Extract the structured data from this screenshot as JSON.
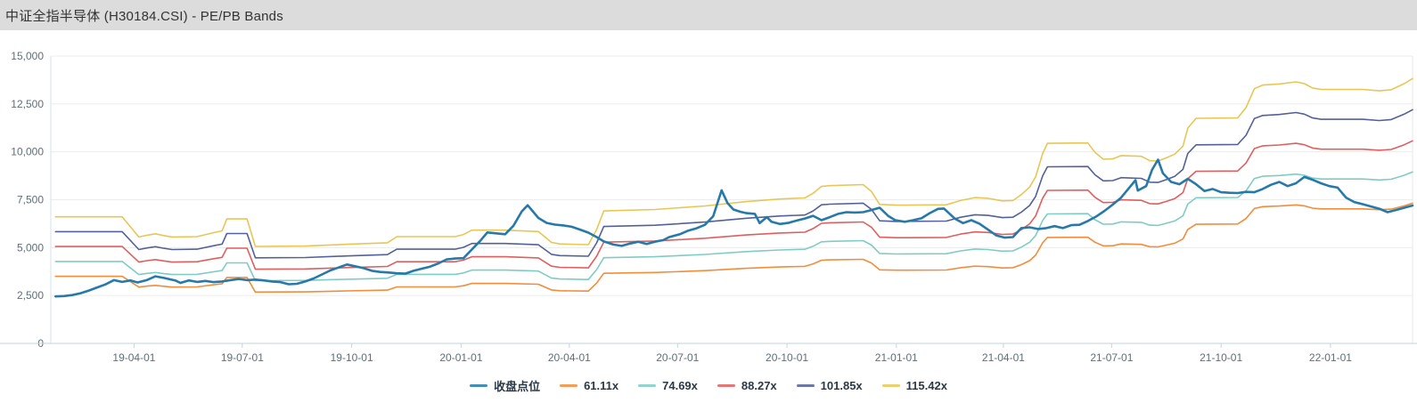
{
  "header": {
    "title": "中证全指半导体 (H30184.CSI) - PE/PB Bands"
  },
  "chart_data": {
    "type": "line",
    "title": "中证全指半导体 (H30184.CSI) - PE/PB Bands",
    "x_range": [
      "2019-01-21",
      "2022-03-11"
    ],
    "x_axis": {
      "tick_labels": [
        "19-04-01",
        "19-07-01",
        "19-10-01",
        "20-01-01",
        "20-04-01",
        "20-07-01",
        "20-10-01",
        "21-01-01",
        "21-04-01",
        "21-07-01",
        "21-10-01",
        "22-01-01"
      ]
    },
    "y_axis": {
      "min": 0,
      "max": 15000,
      "interval": 2500,
      "tick_labels": [
        "0",
        "2,500",
        "5,000",
        "7,500",
        "10,000",
        "12,500",
        "15,000"
      ]
    },
    "style": {
      "grid_line": "#ececec",
      "axis_line": "#c3d3e2",
      "left_axis_line": "#d3e2ee",
      "right_border": "#e9e9e9",
      "axis_label": "#5f6e78",
      "background": "#ffffff",
      "header_background": "#dcdcdc"
    },
    "legend": [
      {
        "label": "收盘点位",
        "color": "#2679a8"
      },
      {
        "label": "61.11x",
        "color": "#f18d3b"
      },
      {
        "label": "74.69x",
        "color": "#7fccc4"
      },
      {
        "label": "88.27x",
        "color": "#de5f5f"
      },
      {
        "label": "101.85x",
        "color": "#53609a"
      },
      {
        "label": "115.42x",
        "color": "#e8c655"
      }
    ],
    "series": {
      "close": {
        "name": "收盘点位",
        "color": "#2679a8",
        "line_width": 2.6,
        "points": [
          [
            "2019-01-25",
            2450
          ],
          [
            "2019-02-01",
            2470
          ],
          [
            "2019-02-08",
            2520
          ],
          [
            "2019-02-15",
            2620
          ],
          [
            "2019-02-22",
            2760
          ],
          [
            "2019-03-01",
            2920
          ],
          [
            "2019-03-08",
            3080
          ],
          [
            "2019-03-15",
            3300
          ],
          [
            "2019-03-22",
            3210
          ],
          [
            "2019-03-29",
            3290
          ],
          [
            "2019-04-04",
            3180
          ],
          [
            "2019-04-12",
            3310
          ],
          [
            "2019-04-19",
            3500
          ],
          [
            "2019-04-26",
            3420
          ],
          [
            "2019-05-06",
            3280
          ],
          [
            "2019-05-10",
            3160
          ],
          [
            "2019-05-17",
            3290
          ],
          [
            "2019-05-24",
            3210
          ],
          [
            "2019-05-31",
            3260
          ],
          [
            "2019-06-07",
            3200
          ],
          [
            "2019-06-14",
            3230
          ],
          [
            "2019-06-21",
            3300
          ],
          [
            "2019-06-28",
            3360
          ],
          [
            "2019-07-05",
            3300
          ],
          [
            "2019-07-12",
            3330
          ],
          [
            "2019-07-19",
            3290
          ],
          [
            "2019-07-26",
            3230
          ],
          [
            "2019-08-02",
            3200
          ],
          [
            "2019-08-09",
            3090
          ],
          [
            "2019-08-16",
            3110
          ],
          [
            "2019-08-23",
            3230
          ],
          [
            "2019-08-30",
            3390
          ],
          [
            "2019-09-06",
            3600
          ],
          [
            "2019-09-13",
            3810
          ],
          [
            "2019-09-20",
            3960
          ],
          [
            "2019-09-27",
            4120
          ],
          [
            "2019-10-11",
            3930
          ],
          [
            "2019-10-18",
            3790
          ],
          [
            "2019-10-25",
            3730
          ],
          [
            "2019-11-01",
            3700
          ],
          [
            "2019-11-08",
            3660
          ],
          [
            "2019-11-15",
            3640
          ],
          [
            "2019-11-22",
            3790
          ],
          [
            "2019-11-29",
            3900
          ],
          [
            "2019-12-06",
            4010
          ],
          [
            "2019-12-13",
            4180
          ],
          [
            "2019-12-20",
            4390
          ],
          [
            "2019-12-27",
            4430
          ],
          [
            "2020-01-03",
            4450
          ],
          [
            "2020-01-10",
            4900
          ],
          [
            "2020-01-17",
            5350
          ],
          [
            "2020-01-23",
            5790
          ],
          [
            "2020-02-07",
            5700
          ],
          [
            "2020-02-14",
            6140
          ],
          [
            "2020-02-21",
            6890
          ],
          [
            "2020-02-26",
            7210
          ],
          [
            "2020-03-06",
            6550
          ],
          [
            "2020-03-13",
            6290
          ],
          [
            "2020-03-20",
            6200
          ],
          [
            "2020-03-27",
            6160
          ],
          [
            "2020-04-03",
            6090
          ],
          [
            "2020-04-10",
            5940
          ],
          [
            "2020-04-17",
            5780
          ],
          [
            "2020-04-24",
            5550
          ],
          [
            "2020-04-30",
            5320
          ],
          [
            "2020-05-08",
            5160
          ],
          [
            "2020-05-15",
            5090
          ],
          [
            "2020-05-22",
            5210
          ],
          [
            "2020-05-29",
            5310
          ],
          [
            "2020-06-05",
            5190
          ],
          [
            "2020-06-12",
            5310
          ],
          [
            "2020-06-19",
            5390
          ],
          [
            "2020-06-24",
            5550
          ],
          [
            "2020-07-03",
            5700
          ],
          [
            "2020-07-10",
            5890
          ],
          [
            "2020-07-17",
            6010
          ],
          [
            "2020-07-24",
            6190
          ],
          [
            "2020-07-31",
            6640
          ],
          [
            "2020-08-07",
            7990
          ],
          [
            "2020-08-12",
            7330
          ],
          [
            "2020-08-17",
            6990
          ],
          [
            "2020-08-23",
            6870
          ],
          [
            "2020-08-28",
            6800
          ],
          [
            "2020-09-04",
            6760
          ],
          [
            "2020-09-08",
            6280
          ],
          [
            "2020-09-14",
            6590
          ],
          [
            "2020-09-18",
            6350
          ],
          [
            "2020-09-25",
            6230
          ],
          [
            "2020-10-02",
            6290
          ],
          [
            "2020-10-09",
            6410
          ],
          [
            "2020-10-16",
            6520
          ],
          [
            "2020-10-23",
            6660
          ],
          [
            "2020-10-30",
            6430
          ],
          [
            "2020-11-06",
            6590
          ],
          [
            "2020-11-13",
            6760
          ],
          [
            "2020-11-20",
            6850
          ],
          [
            "2020-11-27",
            6830
          ],
          [
            "2020-12-04",
            6850
          ],
          [
            "2020-12-11",
            6960
          ],
          [
            "2020-12-18",
            7080
          ],
          [
            "2020-12-25",
            6660
          ],
          [
            "2020-12-31",
            6430
          ],
          [
            "2021-01-08",
            6350
          ],
          [
            "2021-01-15",
            6430
          ],
          [
            "2021-01-22",
            6530
          ],
          [
            "2021-01-29",
            6800
          ],
          [
            "2021-02-05",
            7020
          ],
          [
            "2021-02-10",
            7040
          ],
          [
            "2021-02-19",
            6520
          ],
          [
            "2021-02-26",
            6280
          ],
          [
            "2021-03-05",
            6430
          ],
          [
            "2021-03-12",
            6240
          ],
          [
            "2021-03-19",
            5940
          ],
          [
            "2021-03-26",
            5640
          ],
          [
            "2021-04-02",
            5520
          ],
          [
            "2021-04-09",
            5550
          ],
          [
            "2021-04-16",
            6020
          ],
          [
            "2021-04-23",
            6060
          ],
          [
            "2021-04-30",
            5970
          ],
          [
            "2021-05-07",
            6020
          ],
          [
            "2021-05-14",
            6120
          ],
          [
            "2021-05-21",
            6020
          ],
          [
            "2021-05-28",
            6170
          ],
          [
            "2021-06-04",
            6190
          ],
          [
            "2021-06-11",
            6390
          ],
          [
            "2021-06-18",
            6620
          ],
          [
            "2021-06-25",
            6920
          ],
          [
            "2021-07-02",
            7250
          ],
          [
            "2021-07-09",
            7610
          ],
          [
            "2021-07-16",
            8140
          ],
          [
            "2021-07-21",
            8520
          ],
          [
            "2021-07-23",
            7980
          ],
          [
            "2021-07-30",
            8210
          ],
          [
            "2021-08-04",
            9060
          ],
          [
            "2021-08-09",
            9590
          ],
          [
            "2021-08-13",
            8890
          ],
          [
            "2021-08-20",
            8430
          ],
          [
            "2021-08-27",
            8310
          ],
          [
            "2021-09-03",
            8590
          ],
          [
            "2021-09-10",
            8310
          ],
          [
            "2021-09-17",
            7950
          ],
          [
            "2021-09-24",
            8060
          ],
          [
            "2021-10-01",
            7890
          ],
          [
            "2021-10-08",
            7860
          ],
          [
            "2021-10-15",
            7850
          ],
          [
            "2021-10-22",
            7910
          ],
          [
            "2021-10-29",
            7890
          ],
          [
            "2021-11-05",
            8060
          ],
          [
            "2021-11-12",
            8280
          ],
          [
            "2021-11-19",
            8430
          ],
          [
            "2021-11-26",
            8210
          ],
          [
            "2021-12-03",
            8360
          ],
          [
            "2021-12-10",
            8690
          ],
          [
            "2021-12-17",
            8540
          ],
          [
            "2021-12-24",
            8360
          ],
          [
            "2021-12-31",
            8210
          ],
          [
            "2022-01-07",
            8130
          ],
          [
            "2022-01-14",
            7610
          ],
          [
            "2022-01-21",
            7380
          ],
          [
            "2022-01-28",
            7270
          ],
          [
            "2022-02-11",
            7030
          ],
          [
            "2022-02-18",
            6850
          ],
          [
            "2022-02-25",
            6960
          ],
          [
            "2022-03-04",
            7080
          ],
          [
            "2022-03-11",
            7200
          ]
        ]
      },
      "pe_bands": {
        "base_multiple": 61.11,
        "multiples": [
          {
            "label": "61.11x",
            "value": 61.11,
            "color": "#f18d3b"
          },
          {
            "label": "74.69x",
            "value": 74.69,
            "color": "#7fccc4"
          },
          {
            "label": "88.27x",
            "value": 88.27,
            "color": "#de5f5f"
          },
          {
            "label": "101.85x",
            "value": 101.85,
            "color": "#53609a"
          },
          {
            "label": "115.42x",
            "value": 115.42,
            "color": "#e8c655"
          }
        ],
        "line_width": 1.6,
        "base_points": [
          [
            "2019-01-25",
            3500
          ],
          [
            "2019-03-22",
            3500
          ],
          [
            "2019-04-05",
            2940
          ],
          [
            "2019-04-12",
            2990
          ],
          [
            "2019-04-19",
            3030
          ],
          [
            "2019-04-26",
            2980
          ],
          [
            "2019-05-03",
            2940
          ],
          [
            "2019-05-24",
            2950
          ],
          [
            "2019-06-07",
            3060
          ],
          [
            "2019-06-14",
            3110
          ],
          [
            "2019-06-18",
            3440
          ],
          [
            "2019-07-05",
            3440
          ],
          [
            "2019-07-12",
            2680
          ],
          [
            "2019-08-23",
            2690
          ],
          [
            "2019-09-27",
            2740
          ],
          [
            "2019-10-31",
            2780
          ],
          [
            "2019-11-08",
            2950
          ],
          [
            "2019-12-27",
            2950
          ],
          [
            "2020-01-03",
            3010
          ],
          [
            "2020-01-10",
            3130
          ],
          [
            "2020-02-07",
            3130
          ],
          [
            "2020-03-06",
            3090
          ],
          [
            "2020-03-17",
            2790
          ],
          [
            "2020-03-24",
            2750
          ],
          [
            "2020-04-17",
            2730
          ],
          [
            "2020-04-24",
            3150
          ],
          [
            "2020-04-30",
            3660
          ],
          [
            "2020-06-12",
            3700
          ],
          [
            "2020-07-24",
            3800
          ],
          [
            "2020-08-28",
            3920
          ],
          [
            "2020-09-25",
            3990
          ],
          [
            "2020-10-16",
            4020
          ],
          [
            "2020-10-23",
            4150
          ],
          [
            "2020-10-30",
            4340
          ],
          [
            "2020-11-06",
            4360
          ],
          [
            "2020-12-04",
            4390
          ],
          [
            "2020-12-11",
            4200
          ],
          [
            "2020-12-18",
            3840
          ],
          [
            "2021-01-01",
            3820
          ],
          [
            "2021-02-12",
            3830
          ],
          [
            "2021-02-24",
            3950
          ],
          [
            "2021-03-08",
            4030
          ],
          [
            "2021-03-19",
            4010
          ],
          [
            "2021-03-31",
            3940
          ],
          [
            "2021-04-09",
            3950
          ],
          [
            "2021-04-16",
            4110
          ],
          [
            "2021-04-23",
            4320
          ],
          [
            "2021-04-28",
            4600
          ],
          [
            "2021-05-04",
            5250
          ],
          [
            "2021-05-08",
            5530
          ],
          [
            "2021-06-11",
            5540
          ],
          [
            "2021-06-17",
            5280
          ],
          [
            "2021-06-24",
            5090
          ],
          [
            "2021-07-02",
            5100
          ],
          [
            "2021-07-09",
            5190
          ],
          [
            "2021-07-26",
            5170
          ],
          [
            "2021-08-02",
            5050
          ],
          [
            "2021-08-09",
            5040
          ],
          [
            "2021-08-16",
            5130
          ],
          [
            "2021-08-23",
            5230
          ],
          [
            "2021-08-30",
            5450
          ],
          [
            "2021-09-03",
            5950
          ],
          [
            "2021-09-10",
            6220
          ],
          [
            "2021-10-15",
            6230
          ],
          [
            "2021-10-22",
            6520
          ],
          [
            "2021-10-29",
            7040
          ],
          [
            "2021-11-05",
            7140
          ],
          [
            "2021-11-19",
            7170
          ],
          [
            "2021-12-03",
            7230
          ],
          [
            "2021-12-10",
            7180
          ],
          [
            "2021-12-17",
            7060
          ],
          [
            "2021-12-24",
            7020
          ],
          [
            "2022-01-28",
            7020
          ],
          [
            "2022-02-11",
            6980
          ],
          [
            "2022-02-21",
            7010
          ],
          [
            "2022-03-04",
            7180
          ],
          [
            "2022-03-11",
            7320
          ]
        ]
      }
    }
  }
}
